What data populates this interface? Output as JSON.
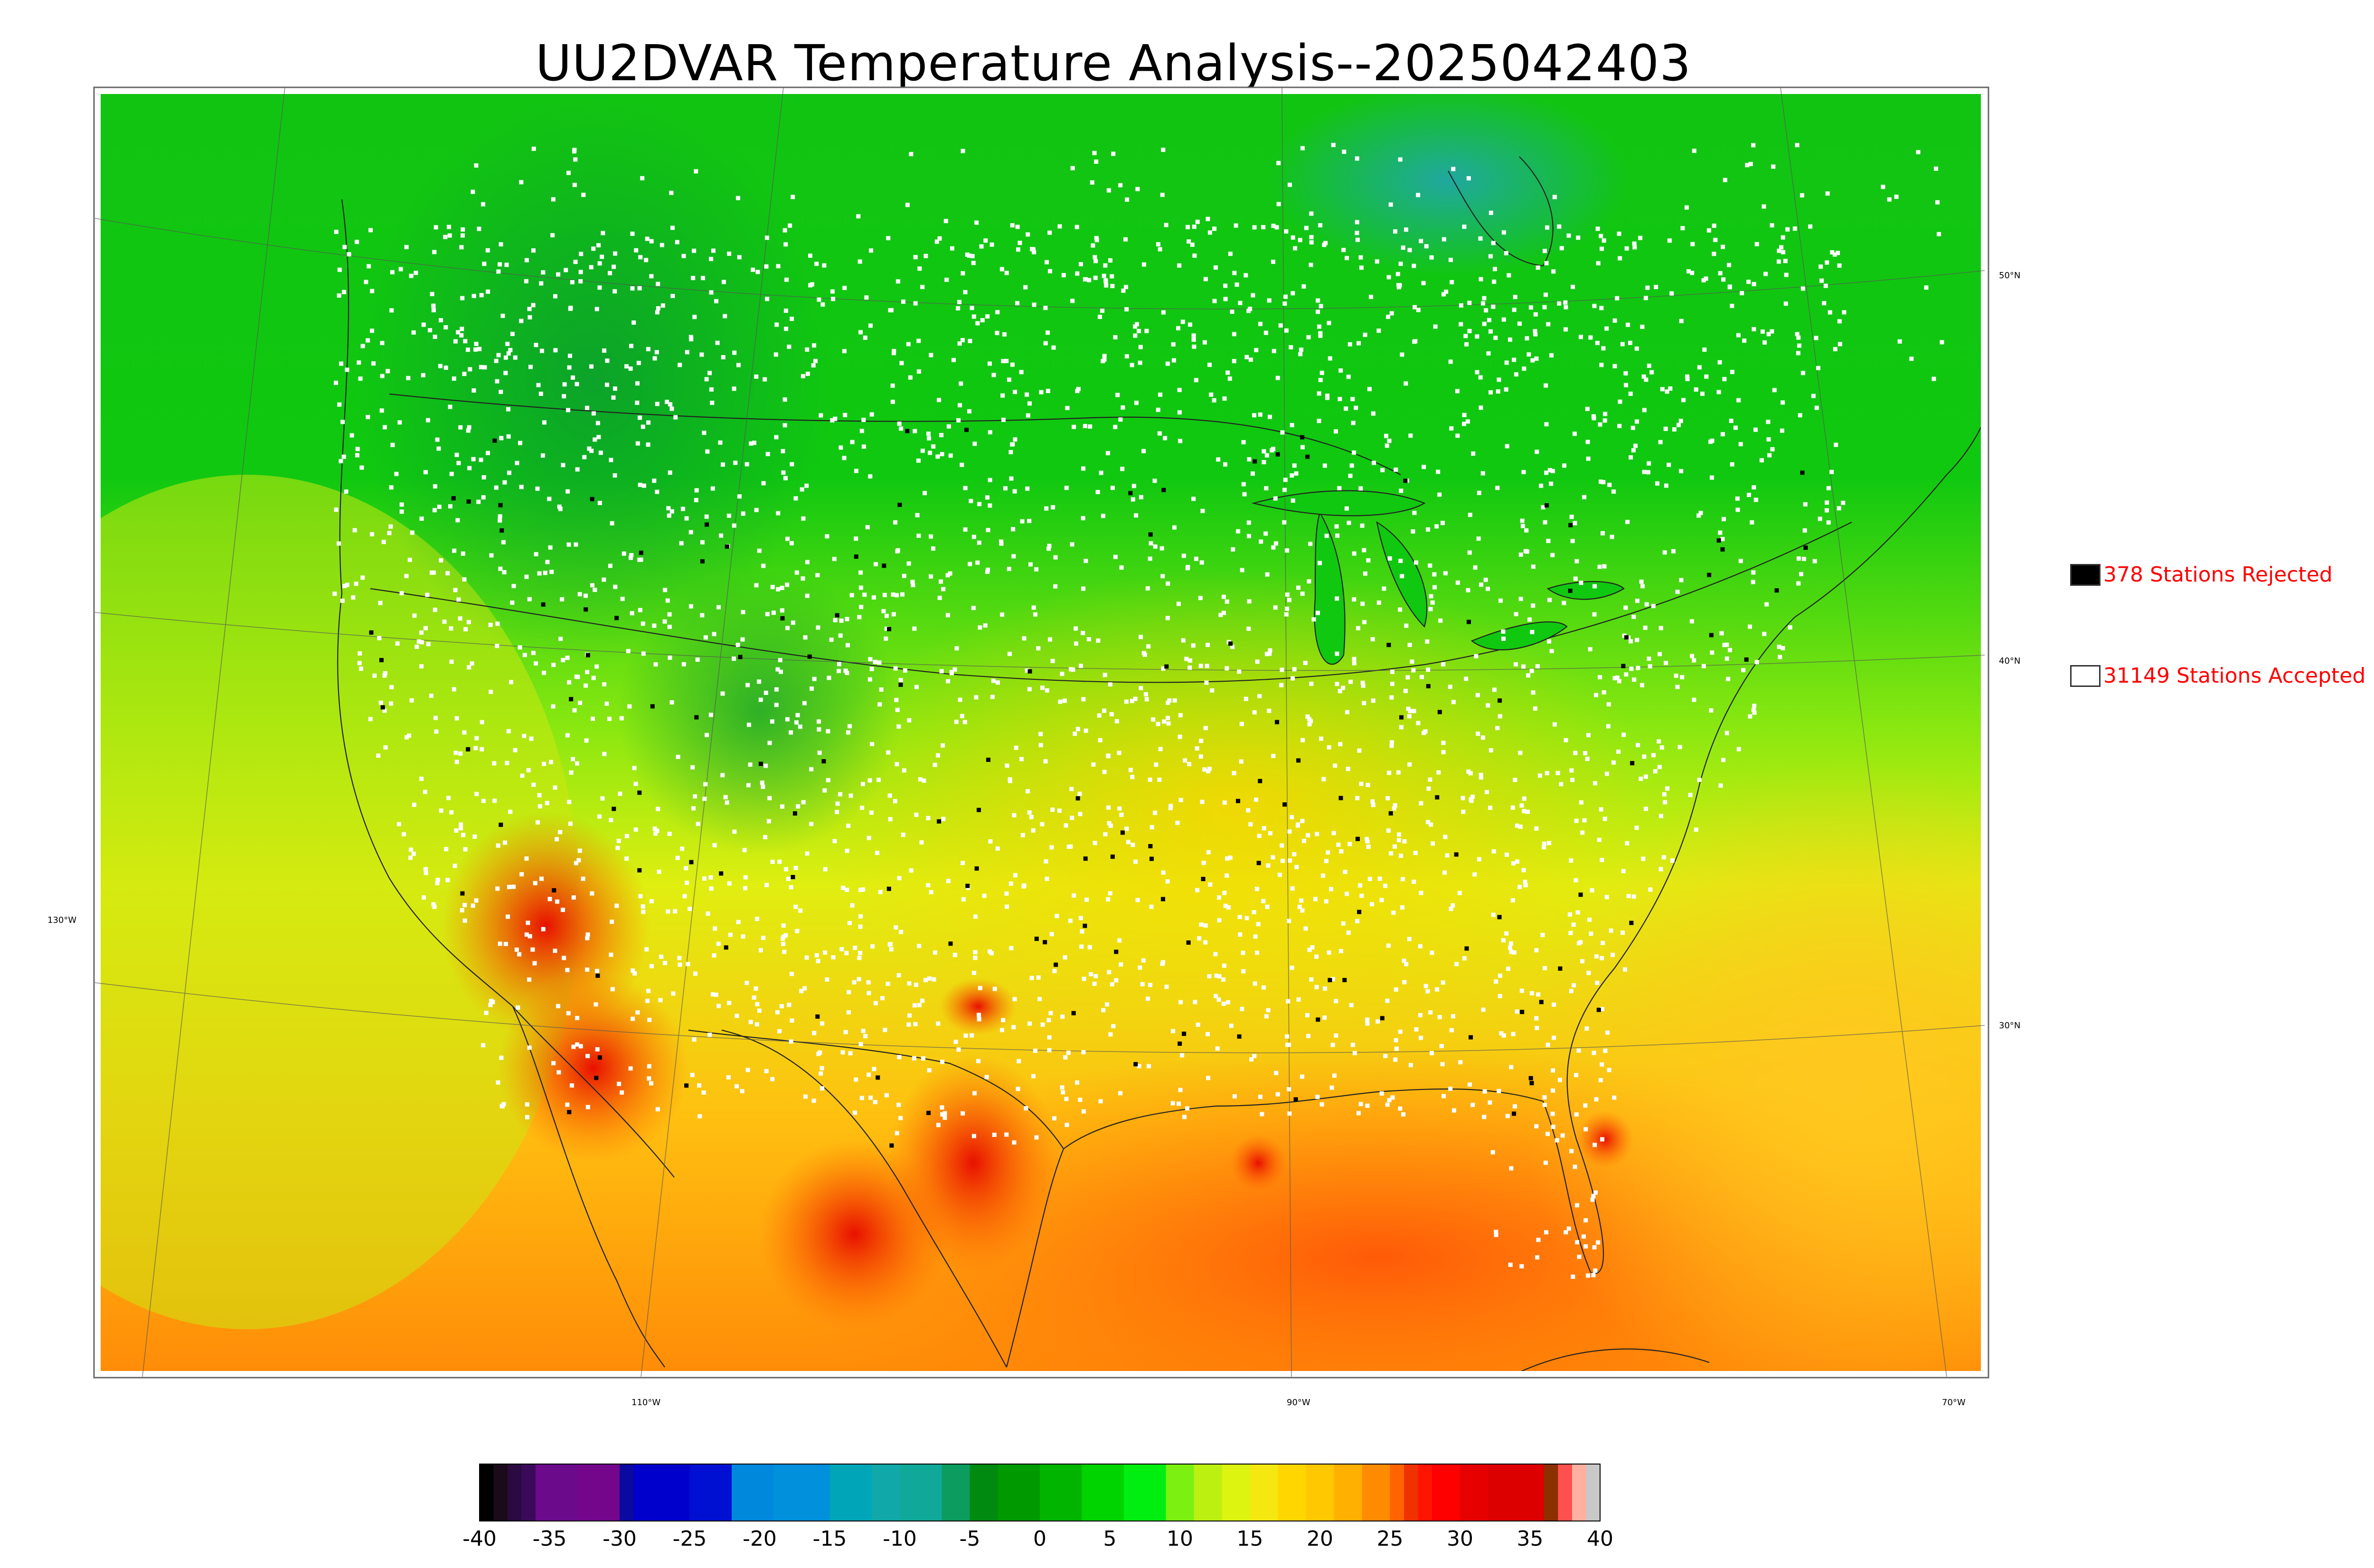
{
  "title": "UU2DVAR Temperature Analysis--2025042403",
  "legend": {
    "rejected": {
      "label": "378 Stations Rejected",
      "count": 378,
      "swatch": "#000000"
    },
    "accepted": {
      "label": "31149 Stations Accepted",
      "count": 31149,
      "swatch": "#ffffff"
    }
  },
  "map": {
    "region": "Continental United States",
    "lon_labels": [
      "130°W",
      "110°W",
      "90°W",
      "70°W"
    ],
    "lat_labels": [
      "50°N",
      "40°N",
      "30°N"
    ],
    "ocean_colors": {
      "north_cool": "#10c010",
      "pacific_west": "#c8ee10",
      "pacific_south": "#f4dc20",
      "gulf": "#ff7a08",
      "atlantic": "#ffb41a",
      "hudson": "#20a8a0"
    }
  },
  "colorbar": {
    "min": -40,
    "max": 40,
    "tick_labels": [
      "-40",
      "-35",
      "-30",
      "-25",
      "-20",
      "-15",
      "-10",
      "-5",
      "0",
      "5",
      "10",
      "15",
      "20",
      "25",
      "30",
      "35",
      "40"
    ],
    "segments": [
      {
        "from": -40,
        "to": -39,
        "color": "#000000"
      },
      {
        "from": -39,
        "to": -38,
        "color": "#1a0a1a"
      },
      {
        "from": -38,
        "to": -37,
        "color": "#2a0a40"
      },
      {
        "from": -37,
        "to": -36,
        "color": "#3a0a5a"
      },
      {
        "from": -36,
        "to": -33,
        "color": "#6c0a8c"
      },
      {
        "from": -33,
        "to": -30,
        "color": "#74068c"
      },
      {
        "from": -30,
        "to": -29,
        "color": "#0a0aa0"
      },
      {
        "from": -29,
        "to": -25,
        "color": "#0000cc"
      },
      {
        "from": -25,
        "to": -22,
        "color": "#0010d2"
      },
      {
        "from": -22,
        "to": -19,
        "color": "#0088dd"
      },
      {
        "from": -19,
        "to": -15,
        "color": "#0090dc"
      },
      {
        "from": -15,
        "to": -12,
        "color": "#00a6b8"
      },
      {
        "from": -12,
        "to": -10,
        "color": "#10a8a8"
      },
      {
        "from": -10,
        "to": -7,
        "color": "#10a898"
      },
      {
        "from": -7,
        "to": -5,
        "color": "#0c9c60"
      },
      {
        "from": -5,
        "to": -3,
        "color": "#008a10"
      },
      {
        "from": -3,
        "to": 0,
        "color": "#009a00"
      },
      {
        "from": 0,
        "to": 3,
        "color": "#00b400"
      },
      {
        "from": 3,
        "to": 6,
        "color": "#00d400"
      },
      {
        "from": 6,
        "to": 9,
        "color": "#00ee10"
      },
      {
        "from": 9,
        "to": 11,
        "color": "#7cf010"
      },
      {
        "from": 11,
        "to": 13,
        "color": "#bcf010"
      },
      {
        "from": 13,
        "to": 15,
        "color": "#dcf410"
      },
      {
        "from": 15,
        "to": 17,
        "color": "#f4e810"
      },
      {
        "from": 17,
        "to": 19,
        "color": "#ffd600"
      },
      {
        "from": 19,
        "to": 21,
        "color": "#ffc800"
      },
      {
        "from": 21,
        "to": 23,
        "color": "#ffb000"
      },
      {
        "from": 23,
        "to": 25,
        "color": "#ff8c00"
      },
      {
        "from": 25,
        "to": 26,
        "color": "#ff6400"
      },
      {
        "from": 26,
        "to": 27,
        "color": "#f03200"
      },
      {
        "from": 27,
        "to": 28,
        "color": "#ff1400"
      },
      {
        "from": 28,
        "to": 30,
        "color": "#ff0000"
      },
      {
        "from": 30,
        "to": 32,
        "color": "#e60000"
      },
      {
        "from": 32,
        "to": 36,
        "color": "#dd0000"
      },
      {
        "from": 36,
        "to": 37,
        "color": "#8c3000"
      },
      {
        "from": 37,
        "to": 38,
        "color": "#ff5050"
      },
      {
        "from": 38,
        "to": 39,
        "color": "#ffb0a0"
      },
      {
        "from": 39,
        "to": 40,
        "color": "#c8c8c8"
      }
    ]
  }
}
